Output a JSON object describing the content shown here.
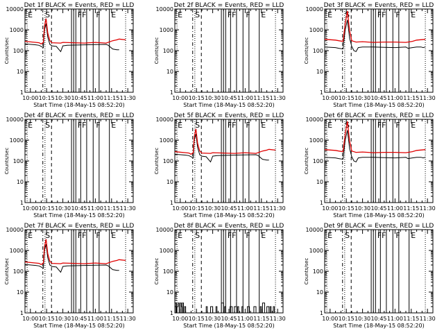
{
  "colors": {
    "events": "#000000",
    "lld": "#e00000",
    "axes": "#000000",
    "background": "#ffffff"
  },
  "common": {
    "xlabel": "Start Time (18-May-15 08:52:20)",
    "ylabel": "Counts/sec",
    "xticks": [
      "10:00",
      "10:15",
      "10:30",
      "10:45",
      "11:00",
      "11:15",
      "11:30"
    ],
    "xlim_min": [
      -5,
      95
    ],
    "yticks": [
      "1",
      "10",
      "100",
      "1000",
      "10000"
    ],
    "ylim": [
      1,
      10000
    ],
    "yscale": "log",
    "marker_labels": [
      {
        "label": "E",
        "x_min": -3
      },
      {
        "label": "S",
        "x_min": 13
      },
      {
        "label": "F",
        "x_min": 43
      },
      {
        "label": "F",
        "x_min": 47
      },
      {
        "label": "F",
        "x_min": 60
      },
      {
        "label": "E",
        "x_min": 74
      }
    ],
    "vlines": [
      {
        "x_min": -3,
        "style": "dotted"
      },
      {
        "x_min": 11.5,
        "style": "dashdot"
      },
      {
        "x_min": 13.5,
        "style": "dotted"
      },
      {
        "x_min": 19.5,
        "style": "dashed"
      },
      {
        "x_min": 38,
        "style": "solid"
      },
      {
        "x_min": 40,
        "style": "solid"
      },
      {
        "x_min": 42,
        "style": "solid"
      },
      {
        "x_min": 46.5,
        "style": "solid"
      },
      {
        "x_min": 52,
        "style": "solid"
      },
      {
        "x_min": 58,
        "style": "solid"
      },
      {
        "x_min": 63.5,
        "style": "solid"
      },
      {
        "x_min": 73,
        "style": "solid"
      },
      {
        "x_min": 88,
        "style": "dotted"
      }
    ]
  },
  "chart_data": [
    {
      "type": "line",
      "title": "Det 1f BLACK = Events, RED = LLD",
      "yscale": "log",
      "series": [
        {
          "name": "Events",
          "x_min": [
            -5,
            5,
            8,
            10,
            12,
            13,
            14.5,
            16,
            18,
            20,
            24,
            28,
            30,
            34,
            40,
            50,
            60,
            70,
            72,
            76,
            78,
            80,
            82
          ],
          "y": [
            210,
            190,
            180,
            160,
            140,
            1000,
            2000,
            450,
            200,
            170,
            160,
            90,
            170,
            180,
            185,
            190,
            195,
            200,
            180,
            120,
            115,
            110,
            110
          ]
        },
        {
          "name": "LLD",
          "x_min": [
            -5,
            5,
            8,
            10,
            12,
            13,
            14.5,
            16,
            18,
            20,
            28,
            30,
            40,
            50,
            60,
            70,
            76,
            80,
            82,
            88
          ],
          "y": [
            280,
            250,
            240,
            210,
            250,
            1500,
            3500,
            700,
            300,
            240,
            230,
            250,
            240,
            230,
            250,
            230,
            300,
            330,
            360,
            330
          ]
        }
      ]
    },
    {
      "type": "line",
      "title": "Det 2f BLACK = Events, RED = LLD",
      "yscale": "log",
      "series": []
    },
    {
      "type": "line",
      "title": "Det 3f BLACK = Events, RED = LLD",
      "yscale": "log",
      "series": [
        {
          "name": "Events",
          "x_min": [
            -5,
            5,
            8,
            12,
            14,
            16,
            18,
            20,
            22,
            24,
            26,
            30,
            40,
            50,
            60,
            70,
            72,
            76,
            80,
            84,
            86,
            88
          ],
          "y": [
            150,
            140,
            130,
            120,
            1000,
            3000,
            400,
            160,
            100,
            90,
            140,
            150,
            150,
            145,
            140,
            150,
            130,
            140,
            150,
            150,
            140,
            150
          ]
        },
        {
          "name": "LLD",
          "x_min": [
            -5,
            5,
            8,
            12,
            14,
            16,
            18,
            20,
            24,
            30,
            40,
            50,
            60,
            70,
            76,
            80,
            88
          ],
          "y": [
            350,
            320,
            300,
            280,
            2000,
            8000,
            900,
            300,
            260,
            270,
            250,
            260,
            260,
            250,
            280,
            320,
            350
          ]
        }
      ]
    },
    {
      "type": "line",
      "title": "Det 4f BLACK = Events, RED = LLD",
      "yscale": "log",
      "series": []
    },
    {
      "type": "line",
      "title": "Det 5f BLACK = Events, RED = LLD",
      "yscale": "log",
      "series": [
        {
          "name": "Events",
          "x_min": [
            -5,
            5,
            8,
            10,
            12,
            13,
            14.5,
            16,
            18,
            20,
            24,
            28,
            30,
            34,
            40,
            50,
            60,
            70,
            72,
            76,
            80,
            82
          ],
          "y": [
            210,
            190,
            180,
            160,
            140,
            1000,
            2000,
            450,
            200,
            170,
            160,
            90,
            170,
            180,
            185,
            190,
            195,
            200,
            180,
            120,
            110,
            110
          ]
        },
        {
          "name": "LLD",
          "x_min": [
            -5,
            5,
            8,
            10,
            12,
            13,
            14.5,
            16,
            18,
            20,
            28,
            30,
            40,
            50,
            60,
            70,
            76,
            80,
            82,
            88
          ],
          "y": [
            280,
            250,
            240,
            210,
            250,
            1500,
            3500,
            700,
            300,
            240,
            230,
            250,
            240,
            230,
            250,
            230,
            300,
            330,
            360,
            330
          ]
        }
      ]
    },
    {
      "type": "line",
      "title": "Det 6f BLACK = Events, RED = LLD",
      "yscale": "log",
      "series": [
        {
          "name": "Events",
          "x_min": [
            -5,
            5,
            8,
            12,
            14,
            16,
            18,
            20,
            22,
            24,
            26,
            30,
            40,
            50,
            60,
            70,
            72,
            76,
            80,
            84,
            86,
            88
          ],
          "y": [
            150,
            140,
            130,
            120,
            1000,
            3000,
            400,
            160,
            100,
            90,
            140,
            150,
            150,
            145,
            140,
            150,
            130,
            140,
            150,
            150,
            140,
            150
          ]
        },
        {
          "name": "LLD",
          "x_min": [
            -5,
            5,
            8,
            12,
            14,
            16,
            18,
            20,
            24,
            30,
            40,
            50,
            60,
            70,
            76,
            80,
            88
          ],
          "y": [
            350,
            320,
            300,
            280,
            2000,
            8000,
            900,
            300,
            260,
            270,
            250,
            260,
            260,
            250,
            280,
            320,
            350
          ]
        }
      ]
    },
    {
      "type": "line",
      "title": "Det 7f BLACK = Events, RED = LLD",
      "yscale": "log",
      "series": [
        {
          "name": "Events",
          "x_min": [
            -5,
            5,
            8,
            10,
            12,
            13,
            14.5,
            16,
            18,
            20,
            24,
            28,
            30,
            34,
            40,
            50,
            60,
            70,
            72,
            76,
            80,
            82
          ],
          "y": [
            210,
            190,
            180,
            160,
            140,
            1000,
            2000,
            450,
            200,
            170,
            160,
            90,
            170,
            180,
            185,
            190,
            195,
            200,
            180,
            120,
            110,
            110
          ]
        },
        {
          "name": "LLD",
          "x_min": [
            -5,
            5,
            8,
            10,
            12,
            13,
            14.5,
            16,
            18,
            20,
            28,
            30,
            40,
            50,
            60,
            70,
            76,
            80,
            82,
            88
          ],
          "y": [
            280,
            250,
            240,
            210,
            250,
            1500,
            3500,
            700,
            300,
            240,
            230,
            250,
            240,
            230,
            250,
            230,
            300,
            330,
            360,
            330
          ]
        }
      ]
    },
    {
      "type": "line",
      "title": "Det 8f BLACK = Events, RED = LLD",
      "yscale": "log",
      "series": [
        {
          "name": "Events",
          "x_min": [
            -5,
            -4,
            -3.5,
            -3,
            -2,
            -1,
            0,
            1,
            1.5,
            2,
            3,
            4,
            5,
            6,
            8,
            10,
            14,
            18,
            22,
            24,
            25,
            26,
            28,
            30,
            32,
            33,
            34,
            36,
            38,
            40,
            41,
            42,
            44,
            46,
            48,
            50,
            52,
            53,
            54,
            56,
            57,
            58,
            60,
            62,
            64,
            66,
            68,
            70,
            72,
            74,
            75,
            76,
            78,
            80,
            82,
            83,
            84,
            86,
            87,
            88
          ],
          "y": [
            1,
            3,
            1,
            2,
            3,
            1,
            3,
            2,
            1,
            3,
            1,
            2,
            1,
            1,
            1,
            1,
            1,
            1,
            1,
            2,
            1,
            1,
            2,
            1,
            1,
            2,
            1,
            1,
            3,
            1,
            2,
            1,
            1,
            2,
            1,
            2,
            1,
            2,
            1,
            1,
            2,
            1,
            1,
            2,
            1,
            1,
            2,
            1,
            1,
            2,
            1,
            3,
            1,
            2,
            1,
            2,
            1,
            2,
            1,
            1
          ]
        }
      ]
    },
    {
      "type": "line",
      "title": "Det 9f BLACK = Events, RED = LLD",
      "yscale": "log",
      "series": []
    }
  ]
}
